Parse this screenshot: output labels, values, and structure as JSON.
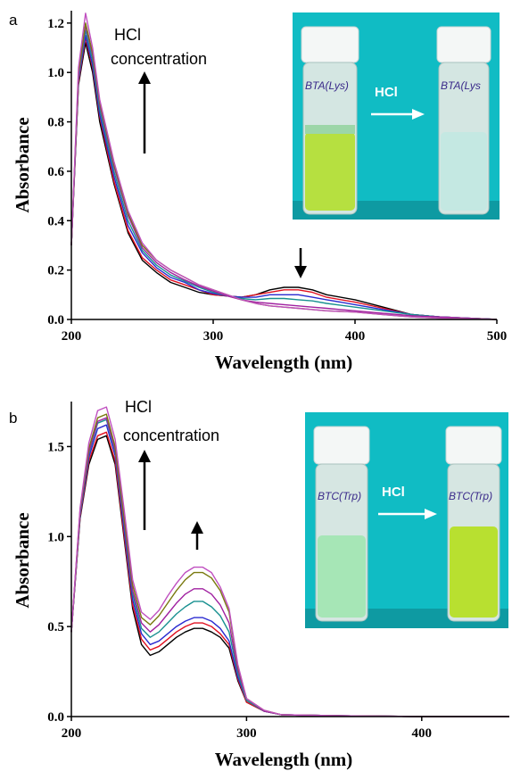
{
  "colors": {
    "series": [
      "#000000",
      "#e01020",
      "#2a2ad0",
      "#189090",
      "#a020a0",
      "#7a7a10",
      "#c050c0"
    ],
    "photo_bg": "#10bcc4"
  },
  "chart_data": [
    {
      "type": "line",
      "panel_label": "a",
      "xlabel": "Wavelength (nm)",
      "ylabel": "Absorbance",
      "xlim": [
        200,
        500
      ],
      "ylim": [
        0.0,
        1.25
      ],
      "xticks": [
        200,
        300,
        400,
        500
      ],
      "yticks": [
        0.0,
        0.2,
        0.4,
        0.6,
        0.8,
        1.0,
        1.2
      ],
      "annotation": [
        "HCl",
        "concentration"
      ],
      "photo": {
        "reagent_label": "HCl",
        "vial_left_text": "BTA(Lys)",
        "vial_right_text": "BTA(Lys"
      },
      "x": [
        200,
        205,
        210,
        215,
        220,
        230,
        240,
        250,
        260,
        270,
        280,
        290,
        300,
        310,
        320,
        330,
        340,
        350,
        360,
        370,
        380,
        400,
        420,
        440,
        460,
        480,
        500
      ],
      "series": [
        {
          "values": [
            0.3,
            0.95,
            1.12,
            1.0,
            0.8,
            0.55,
            0.35,
            0.24,
            0.19,
            0.15,
            0.13,
            0.11,
            0.1,
            0.095,
            0.09,
            0.1,
            0.12,
            0.13,
            0.13,
            0.12,
            0.1,
            0.08,
            0.05,
            0.02,
            0.01,
            0.005,
            0.0
          ]
        },
        {
          "values": [
            0.3,
            0.96,
            1.14,
            1.02,
            0.82,
            0.56,
            0.36,
            0.25,
            0.2,
            0.16,
            0.14,
            0.12,
            0.1,
            0.095,
            0.09,
            0.1,
            0.11,
            0.12,
            0.12,
            0.11,
            0.09,
            0.07,
            0.045,
            0.02,
            0.01,
            0.005,
            0.0
          ]
        },
        {
          "values": [
            0.3,
            0.97,
            1.15,
            1.03,
            0.83,
            0.58,
            0.38,
            0.27,
            0.21,
            0.17,
            0.15,
            0.12,
            0.105,
            0.095,
            0.09,
            0.09,
            0.1,
            0.1,
            0.1,
            0.09,
            0.08,
            0.06,
            0.04,
            0.02,
            0.01,
            0.005,
            0.0
          ]
        },
        {
          "values": [
            0.3,
            0.98,
            1.17,
            1.05,
            0.85,
            0.6,
            0.4,
            0.28,
            0.22,
            0.18,
            0.155,
            0.13,
            0.11,
            0.095,
            0.085,
            0.08,
            0.085,
            0.085,
            0.08,
            0.075,
            0.065,
            0.05,
            0.035,
            0.02,
            0.01,
            0.005,
            0.0
          ]
        },
        {
          "values": [
            0.3,
            0.99,
            1.19,
            1.07,
            0.87,
            0.62,
            0.42,
            0.29,
            0.23,
            0.19,
            0.16,
            0.135,
            0.115,
            0.095,
            0.08,
            0.07,
            0.065,
            0.06,
            0.055,
            0.05,
            0.045,
            0.035,
            0.025,
            0.015,
            0.01,
            0.005,
            0.0
          ]
        },
        {
          "values": [
            0.3,
            1.0,
            1.2,
            1.08,
            0.88,
            0.63,
            0.43,
            0.3,
            0.24,
            0.2,
            0.17,
            0.14,
            0.12,
            0.1,
            0.08,
            0.065,
            0.055,
            0.05,
            0.045,
            0.04,
            0.035,
            0.03,
            0.02,
            0.01,
            0.005,
            0.003,
            0.0
          ]
        },
        {
          "values": [
            0.3,
            1.02,
            1.24,
            1.1,
            0.89,
            0.64,
            0.44,
            0.31,
            0.24,
            0.2,
            0.17,
            0.14,
            0.12,
            0.1,
            0.08,
            0.065,
            0.055,
            0.05,
            0.045,
            0.04,
            0.035,
            0.03,
            0.02,
            0.01,
            0.005,
            0.003,
            0.0
          ]
        }
      ]
    },
    {
      "type": "line",
      "panel_label": "b",
      "xlabel": "Wavelength (nm)",
      "ylabel": "Absorbance",
      "xlim": [
        200,
        450
      ],
      "ylim": [
        0.0,
        1.75
      ],
      "xticks": [
        200,
        300,
        400
      ],
      "yticks": [
        0.0,
        0.5,
        1.0,
        1.5
      ],
      "annotation": [
        "HCl",
        "concentration"
      ],
      "photo": {
        "reagent_label": "HCl",
        "vial_left_text": "BTC(Trp)",
        "vial_right_text": "BTC(Trp)"
      },
      "x": [
        200,
        205,
        210,
        215,
        220,
        225,
        230,
        235,
        240,
        245,
        250,
        255,
        260,
        265,
        270,
        275,
        280,
        285,
        290,
        295,
        300,
        310,
        320,
        350,
        400,
        450
      ],
      "series": [
        {
          "values": [
            0.47,
            1.1,
            1.4,
            1.54,
            1.56,
            1.4,
            1.0,
            0.6,
            0.4,
            0.34,
            0.36,
            0.4,
            0.44,
            0.47,
            0.49,
            0.49,
            0.47,
            0.44,
            0.38,
            0.2,
            0.08,
            0.03,
            0.01,
            0.005,
            0.0,
            0.0
          ]
        },
        {
          "values": [
            0.47,
            1.11,
            1.42,
            1.56,
            1.58,
            1.42,
            1.02,
            0.62,
            0.43,
            0.37,
            0.39,
            0.43,
            0.47,
            0.5,
            0.52,
            0.52,
            0.5,
            0.46,
            0.4,
            0.21,
            0.08,
            0.03,
            0.01,
            0.005,
            0.0,
            0.0
          ]
        },
        {
          "values": [
            0.47,
            1.12,
            1.44,
            1.6,
            1.62,
            1.45,
            1.05,
            0.65,
            0.46,
            0.4,
            0.42,
            0.46,
            0.5,
            0.53,
            0.55,
            0.55,
            0.53,
            0.49,
            0.42,
            0.22,
            0.09,
            0.03,
            0.01,
            0.005,
            0.0,
            0.0
          ]
        },
        {
          "values": [
            0.47,
            1.13,
            1.46,
            1.63,
            1.65,
            1.47,
            1.08,
            0.68,
            0.49,
            0.44,
            0.47,
            0.52,
            0.57,
            0.61,
            0.64,
            0.64,
            0.61,
            0.56,
            0.47,
            0.24,
            0.09,
            0.03,
            0.01,
            0.005,
            0.0,
            0.0
          ]
        },
        {
          "values": [
            0.47,
            1.14,
            1.47,
            1.64,
            1.66,
            1.48,
            1.1,
            0.7,
            0.52,
            0.47,
            0.51,
            0.57,
            0.63,
            0.68,
            0.71,
            0.71,
            0.68,
            0.62,
            0.52,
            0.26,
            0.1,
            0.03,
            0.01,
            0.005,
            0.0,
            0.0
          ]
        },
        {
          "values": [
            0.47,
            1.15,
            1.49,
            1.66,
            1.68,
            1.5,
            1.12,
            0.73,
            0.55,
            0.51,
            0.56,
            0.63,
            0.7,
            0.76,
            0.8,
            0.8,
            0.77,
            0.7,
            0.58,
            0.28,
            0.1,
            0.035,
            0.01,
            0.005,
            0.0,
            0.0
          ]
        },
        {
          "values": [
            0.47,
            1.16,
            1.52,
            1.7,
            1.72,
            1.54,
            1.16,
            0.76,
            0.58,
            0.54,
            0.59,
            0.67,
            0.74,
            0.8,
            0.83,
            0.83,
            0.8,
            0.72,
            0.6,
            0.29,
            0.1,
            0.035,
            0.01,
            0.005,
            0.0,
            0.0
          ]
        }
      ]
    }
  ]
}
